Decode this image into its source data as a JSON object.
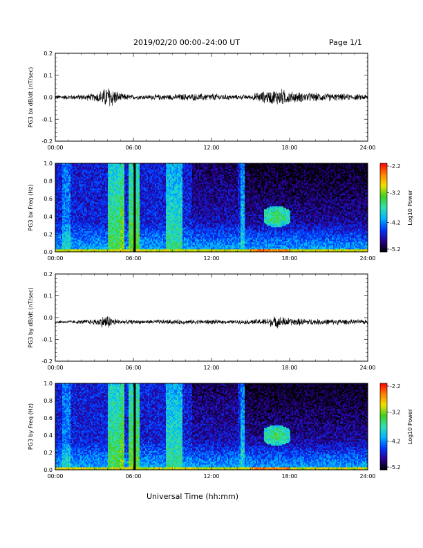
{
  "header": {
    "title": "2019/02/20  00:00–24:00 UT",
    "page_label": "Page 1/1"
  },
  "footer": {
    "xlabel": "Universal Time (hh:mm)"
  },
  "colors": {
    "colormap": [
      "#000000",
      "#2a0090",
      "#0038ff",
      "#00b4ff",
      "#30e0b0",
      "#40d020",
      "#f0e000",
      "#ff8000",
      "#ff0000"
    ]
  },
  "chart_data": [
    {
      "type": "line",
      "name": "bx-waveform",
      "ylabel": "PG3 bx dB/dt (nT/sec)",
      "xlim": [
        0,
        24
      ],
      "ylim": [
        -0.2,
        0.2
      ],
      "x_ticks": [
        "00:00",
        "06:00",
        "12:00",
        "18:00",
        "24:00"
      ],
      "y_ticks": [
        "0.2",
        "0.1",
        "0.0",
        "-0.1",
        "-0.2"
      ],
      "baseline": 0.0,
      "amplitude_profile": {
        "hours": [
          0,
          1,
          2,
          3,
          3.5,
          4,
          4.2,
          4.5,
          5,
          6,
          7,
          8,
          9,
          10,
          11,
          12,
          13,
          14,
          15,
          15.5,
          16,
          17,
          17.3,
          18,
          19,
          20,
          21,
          22,
          23,
          24
        ],
        "peak": [
          0.012,
          0.012,
          0.015,
          0.02,
          0.035,
          0.055,
          0.06,
          0.045,
          0.02,
          0.012,
          0.012,
          0.015,
          0.015,
          0.018,
          0.018,
          0.02,
          0.015,
          0.012,
          0.012,
          0.025,
          0.03,
          0.04,
          0.045,
          0.03,
          0.025,
          0.022,
          0.02,
          0.018,
          0.015,
          0.015
        ]
      }
    },
    {
      "type": "heatmap",
      "name": "bx-spectrogram",
      "ylabel": "PG3 bx Freq (Hz)",
      "xlim": [
        0,
        24
      ],
      "ylim": [
        0.0,
        1.0
      ],
      "x_ticks": [
        "00:00",
        "06:00",
        "12:00",
        "18:00",
        "24:00"
      ],
      "y_ticks": [
        "1.0",
        "0.8",
        "0.6",
        "0.4",
        "0.2",
        "0.0"
      ],
      "colorbar": {
        "label": "Log10 Power",
        "range": [
          -5.2,
          -2.2
        ],
        "ticks": [
          "-2.2",
          "-3.2",
          "-4.2",
          "-5.2"
        ]
      },
      "data_gap_hour": 6.1,
      "features": [
        {
          "hour_range": [
            4.0,
            5.0
          ],
          "level": -3.4
        },
        {
          "hour_range": [
            5.0,
            5.3
          ],
          "level": -3.2
        },
        {
          "hour_range": [
            5.6,
            6.5
          ],
          "level": -3.3
        },
        {
          "hour_range": [
            8.5,
            9.8
          ],
          "level": -3.6
        },
        {
          "hour_range": [
            14.2,
            14.5
          ],
          "level": -3.8
        },
        {
          "hour_range": [
            16.0,
            18.0
          ],
          "freq_range": [
            0.3,
            0.5
          ],
          "level": -3.4
        }
      ]
    },
    {
      "type": "line",
      "name": "by-waveform",
      "ylabel": "PG3 by dB/dt (nT/sec)",
      "xlim": [
        0,
        24
      ],
      "ylim": [
        -0.2,
        0.2
      ],
      "x_ticks": [
        "00:00",
        "06:00",
        "12:00",
        "18:00",
        "24:00"
      ],
      "y_ticks": [
        "0.2",
        "0.1",
        "0.0",
        "-0.1",
        "-0.2"
      ],
      "baseline": -0.02,
      "amplitude_profile": {
        "hours": [
          0,
          1,
          2,
          3,
          3.5,
          3.8,
          4,
          4.3,
          5,
          6,
          7,
          8,
          9,
          10,
          11,
          12,
          13,
          14,
          15,
          16,
          16.5,
          17,
          17.5,
          18,
          19,
          20,
          21,
          22,
          23,
          24
        ],
        "peak": [
          0.008,
          0.008,
          0.01,
          0.015,
          0.025,
          0.035,
          0.038,
          0.025,
          0.012,
          0.01,
          0.01,
          0.012,
          0.012,
          0.012,
          0.012,
          0.012,
          0.01,
          0.01,
          0.012,
          0.018,
          0.025,
          0.03,
          0.028,
          0.02,
          0.018,
          0.015,
          0.015,
          0.014,
          0.012,
          0.012
        ]
      }
    },
    {
      "type": "heatmap",
      "name": "by-spectrogram",
      "ylabel": "PG3 by Freq (Hz)",
      "xlim": [
        0,
        24
      ],
      "ylim": [
        0.0,
        1.0
      ],
      "x_ticks": [
        "00:00",
        "06:00",
        "12:00",
        "18:00",
        "24:00"
      ],
      "y_ticks": [
        "1.0",
        "0.8",
        "0.6",
        "0.4",
        "0.2",
        "0.0"
      ],
      "colorbar": {
        "label": "Log10 Power",
        "range": [
          -5.2,
          -2.2
        ],
        "ticks": [
          "-2.2",
          "-3.2",
          "-4.2",
          "-5.2"
        ]
      },
      "data_gap_hour": 6.1,
      "features": [
        {
          "hour_range": [
            4.0,
            5.0
          ],
          "level": -3.4
        },
        {
          "hour_range": [
            5.0,
            5.3
          ],
          "level": -3.2
        },
        {
          "hour_range": [
            5.6,
            6.5
          ],
          "level": -3.3
        },
        {
          "hour_range": [
            8.5,
            9.8
          ],
          "level": -3.6
        },
        {
          "hour_range": [
            14.2,
            14.5
          ],
          "level": -3.8
        },
        {
          "hour_range": [
            16.0,
            18.0
          ],
          "freq_range": [
            0.3,
            0.5
          ],
          "level": -3.4
        }
      ]
    }
  ]
}
